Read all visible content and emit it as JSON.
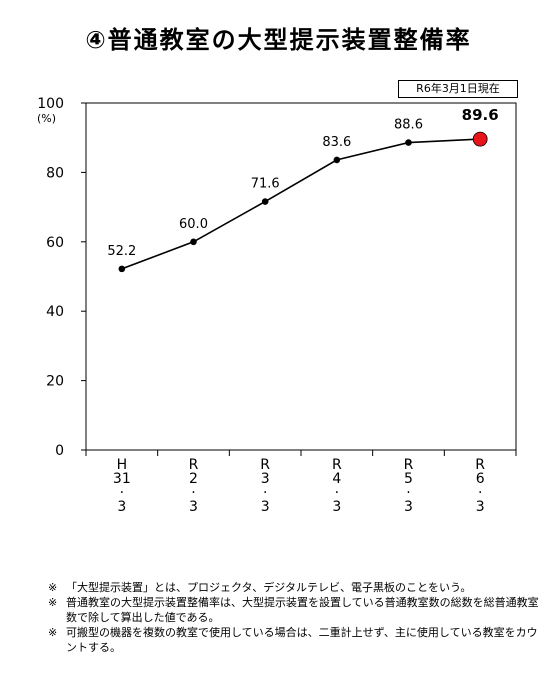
{
  "title": "④普通教室の大型提示装置整備率",
  "as_of": "R6年3月1日現在",
  "chart_data": {
    "type": "line",
    "title": "④普通教室の大型提示装置整備率",
    "ylabel": "(%)",
    "ylim": [
      0,
      100
    ],
    "yticks": [
      0,
      20,
      40,
      60,
      80,
      100
    ],
    "categories": [
      [
        "H",
        "31",
        "·",
        "3"
      ],
      [
        "R",
        "2",
        "·",
        "3"
      ],
      [
        "R",
        "3",
        "·",
        "3"
      ],
      [
        "R",
        "4",
        "·",
        "3"
      ],
      [
        "R",
        "5",
        "·",
        "3"
      ],
      [
        "R",
        "6",
        "·",
        "3"
      ]
    ],
    "series": [
      {
        "values": [
          52.2,
          60.0,
          71.6,
          83.6,
          88.6,
          89.6
        ],
        "labels": [
          "52.2",
          "60.0",
          "71.6",
          "83.6",
          "88.6",
          "89.6"
        ]
      }
    ],
    "highlight_last": true,
    "highlight_color": "#e8141b",
    "line_color": "#000000",
    "grid": false
  },
  "notes": [
    {
      "mark": "※",
      "text": "「大型提示装置」とは、プロジェクタ、デジタルテレビ、電子黒板のことをいう。"
    },
    {
      "mark": "※",
      "text": "普通教室の大型提示装置整備率は、大型提示装置を設置している普通教室数の総数を総普通教室数で除して算出した値である。"
    },
    {
      "mark": "※",
      "text": "可搬型の機器を複数の教室で使用している場合は、二重計上せず、主に使用している教室をカウントする。"
    }
  ]
}
